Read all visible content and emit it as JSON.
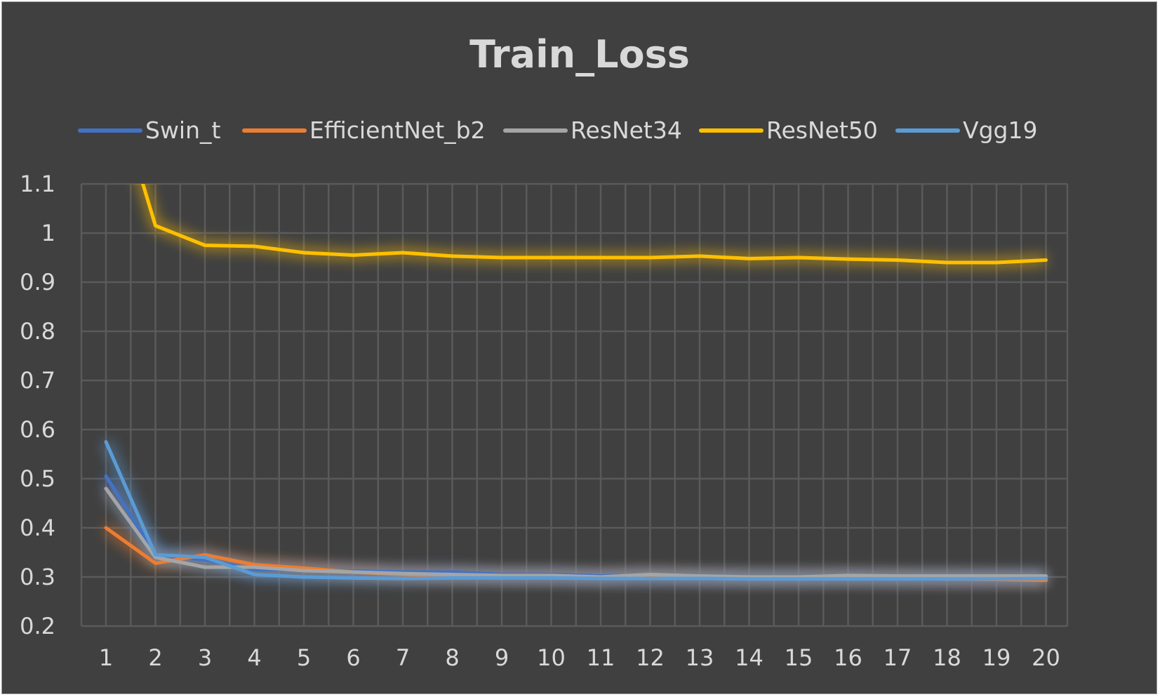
{
  "chart_data": {
    "type": "line",
    "title": "Train_Loss",
    "xlabel": "",
    "ylabel": "",
    "x": [
      1,
      2,
      3,
      4,
      5,
      6,
      7,
      8,
      9,
      10,
      11,
      12,
      13,
      14,
      15,
      16,
      17,
      18,
      19,
      20
    ],
    "ylim": [
      0.2,
      1.1
    ],
    "yticks": [
      0.2,
      0.3,
      0.4,
      0.5,
      0.6,
      0.7,
      0.8,
      0.9,
      1,
      1.1
    ],
    "ytick_labels": [
      "0.2",
      "0.3",
      "0.4",
      "0.5",
      "0.6",
      "0.7",
      "0.8",
      "0.9",
      "1",
      "1.1"
    ],
    "grid": true,
    "legend_position": "top",
    "series": [
      {
        "name": "Swin_t",
        "color": "#4472c4",
        "values": [
          0.505,
          0.345,
          0.335,
          0.315,
          0.315,
          0.312,
          0.31,
          0.31,
          0.305,
          0.305,
          0.302,
          0.302,
          0.3,
          0.3,
          0.3,
          0.3,
          0.298,
          0.298,
          0.298,
          0.298
        ]
      },
      {
        "name": "EfficientNet_b2",
        "color": "#ed7d31",
        "values": [
          0.4,
          0.328,
          0.345,
          0.325,
          0.318,
          0.31,
          0.305,
          0.303,
          0.302,
          0.302,
          0.3,
          0.302,
          0.3,
          0.298,
          0.298,
          0.298,
          0.297,
          0.296,
          0.295,
          0.293
        ]
      },
      {
        "name": "ResNet34",
        "color": "#a5a5a5",
        "values": [
          0.48,
          0.34,
          0.32,
          0.32,
          0.313,
          0.31,
          0.307,
          0.305,
          0.303,
          0.303,
          0.3,
          0.305,
          0.302,
          0.3,
          0.3,
          0.303,
          0.302,
          0.302,
          0.302,
          0.302
        ]
      },
      {
        "name": "ResNet50",
        "color": "#ffc000",
        "values": [
          1.35,
          1.015,
          0.975,
          0.973,
          0.96,
          0.955,
          0.96,
          0.953,
          0.95,
          0.95,
          0.95,
          0.95,
          0.953,
          0.948,
          0.95,
          0.947,
          0.945,
          0.94,
          0.94,
          0.945
        ]
      },
      {
        "name": "Vgg19",
        "color": "#5b9bd5",
        "values": [
          0.575,
          0.345,
          0.34,
          0.305,
          0.3,
          0.298,
          0.297,
          0.298,
          0.298,
          0.298,
          0.297,
          0.297,
          0.297,
          0.296,
          0.296,
          0.296,
          0.296,
          0.296,
          0.296,
          0.297
        ]
      }
    ]
  }
}
